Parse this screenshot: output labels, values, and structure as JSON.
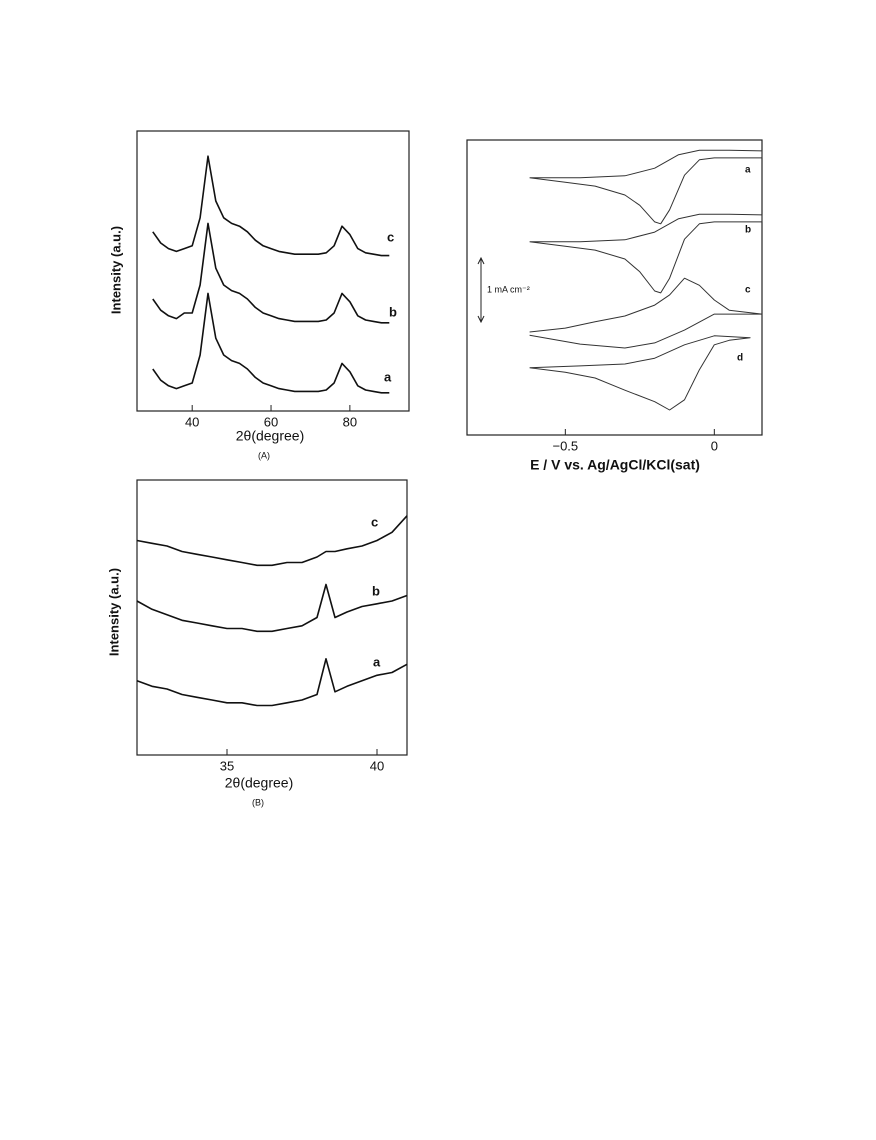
{
  "chart_data": [
    {
      "type": "line",
      "caption": "(A)",
      "x_label": "2θ(degree)",
      "y_label": "Intensity (a.u.)",
      "xlim": [
        26,
        95
      ],
      "xticks": [
        40,
        60,
        80
      ],
      "ylim": [
        0,
        100
      ],
      "x": [
        30,
        32,
        34,
        36,
        38,
        40,
        42,
        44,
        46,
        48,
        50,
        52,
        54,
        56,
        58,
        60,
        62,
        64,
        66,
        68,
        70,
        72,
        74,
        76,
        78,
        80,
        82,
        84,
        86,
        88,
        90
      ],
      "series": [
        {
          "name": "c",
          "color": "#111111",
          "values": [
            64,
            60,
            58,
            57,
            58,
            59,
            69,
            91,
            75,
            69,
            67,
            66,
            64,
            61,
            59,
            58,
            57,
            56.5,
            56,
            56,
            56,
            56,
            56.5,
            59,
            66,
            63,
            58,
            56.5,
            56,
            55.5,
            55.5
          ]
        },
        {
          "name": "b",
          "color": "#111111",
          "values": [
            40,
            36,
            34,
            33,
            35,
            35,
            45,
            67,
            51,
            45,
            43,
            42,
            40,
            37,
            35,
            34,
            33,
            32.5,
            32,
            32,
            32,
            32,
            32.5,
            35,
            42,
            39,
            34,
            32.5,
            32,
            31.5,
            31.5
          ]
        },
        {
          "name": "a",
          "color": "#111111",
          "values": [
            15,
            11,
            9,
            8,
            9,
            10,
            20,
            42,
            26,
            20,
            18,
            17,
            15,
            12,
            10,
            9,
            8,
            7.5,
            7,
            7,
            7,
            7,
            7.5,
            10,
            17,
            14,
            9,
            7.5,
            7,
            6.5,
            6.5
          ]
        }
      ]
    },
    {
      "type": "line",
      "caption": "(B)",
      "x_label": "2θ(degree)",
      "y_label": "Intensity (a.u.)",
      "xlim": [
        32,
        41
      ],
      "xticks": [
        35,
        40
      ],
      "ylim": [
        0,
        100
      ],
      "x": [
        32,
        32.5,
        33,
        33.5,
        34,
        34.5,
        35,
        35.5,
        36,
        36.5,
        37,
        37.5,
        38,
        38.3,
        38.6,
        39,
        39.5,
        40,
        40.5,
        41
      ],
      "series": [
        {
          "name": "c",
          "color": "#111111",
          "values": [
            78,
            77,
            76,
            74,
            73,
            72,
            71,
            70,
            69,
            69,
            70,
            70,
            72,
            74,
            74,
            75,
            76,
            78,
            81,
            87
          ]
        },
        {
          "name": "b",
          "color": "#111111",
          "values": [
            56,
            53,
            51,
            49,
            48,
            47,
            46,
            46,
            45,
            45,
            46,
            47,
            50,
            62,
            50,
            52,
            54,
            55,
            56,
            58
          ]
        },
        {
          "name": "a",
          "color": "#111111",
          "values": [
            27,
            25,
            24,
            22,
            21,
            20,
            19,
            19,
            18,
            18,
            19,
            20,
            22,
            35,
            23,
            25,
            27,
            29,
            30,
            33
          ]
        }
      ]
    },
    {
      "type": "loop",
      "x_label": "E / V vs. Ag/AgCl/KCl(sat)",
      "xlim": [
        -0.83,
        0.16
      ],
      "xticks": [
        {
          "value": -0.5,
          "label": "−0.5"
        },
        0
      ],
      "ylim": [
        0,
        4.61
      ],
      "scale_bar": {
        "value": 1,
        "label": "1 mA cm⁻²"
      },
      "series": [
        {
          "name": "a",
          "color": "#333333",
          "x": [
            -0.62,
            -0.5,
            -0.4,
            -0.3,
            -0.25,
            -0.2,
            -0.18,
            -0.15,
            -0.1,
            -0.05,
            0,
            0.1,
            0.16,
            0.16,
            0.05,
            -0.05,
            -0.12,
            -0.2,
            -0.3,
            -0.45,
            -0.62
          ],
          "values": [
            4.02,
            3.95,
            3.89,
            3.75,
            3.59,
            3.33,
            3.3,
            3.52,
            4.06,
            4.3,
            4.33,
            4.33,
            4.33,
            4.44,
            4.45,
            4.45,
            4.38,
            4.17,
            4.05,
            4.02,
            4.02
          ]
        },
        {
          "name": "b",
          "color": "#333333",
          "x": [
            -0.62,
            -0.5,
            -0.4,
            -0.3,
            -0.25,
            -0.2,
            -0.18,
            -0.15,
            -0.1,
            -0.05,
            0,
            0.1,
            0.16,
            0.16,
            0.05,
            -0.05,
            -0.12,
            -0.2,
            -0.3,
            -0.45,
            -0.62
          ],
          "values": [
            3.02,
            2.95,
            2.89,
            2.75,
            2.55,
            2.25,
            2.22,
            2.45,
            3.06,
            3.3,
            3.33,
            3.33,
            3.33,
            3.44,
            3.45,
            3.45,
            3.38,
            3.17,
            3.05,
            3.02,
            3.02
          ]
        },
        {
          "name": "c",
          "color": "#333333",
          "x": [
            -0.62,
            -0.5,
            -0.4,
            -0.3,
            -0.2,
            -0.15,
            -0.1,
            -0.05,
            0,
            0.05,
            0.16,
            0.05,
            0,
            -0.1,
            -0.2,
            -0.3,
            -0.45,
            -0.62
          ],
          "values": [
            1.61,
            1.67,
            1.77,
            1.86,
            2.03,
            2.19,
            2.45,
            2.34,
            2.11,
            1.95,
            1.89,
            1.89,
            1.89,
            1.64,
            1.44,
            1.36,
            1.42,
            1.56
          ]
        },
        {
          "name": "d",
          "color": "#333333",
          "x": [
            -0.62,
            -0.5,
            -0.4,
            -0.3,
            -0.2,
            -0.15,
            -0.1,
            -0.05,
            0,
            0.05,
            0.12,
            0.12,
            0,
            -0.1,
            -0.2,
            -0.3,
            -0.45,
            -0.62
          ],
          "values": [
            1.05,
            0.98,
            0.89,
            0.7,
            0.52,
            0.39,
            0.55,
            1.02,
            1.41,
            1.48,
            1.52,
            1.52,
            1.55,
            1.41,
            1.2,
            1.11,
            1.08,
            1.05
          ]
        }
      ]
    }
  ]
}
